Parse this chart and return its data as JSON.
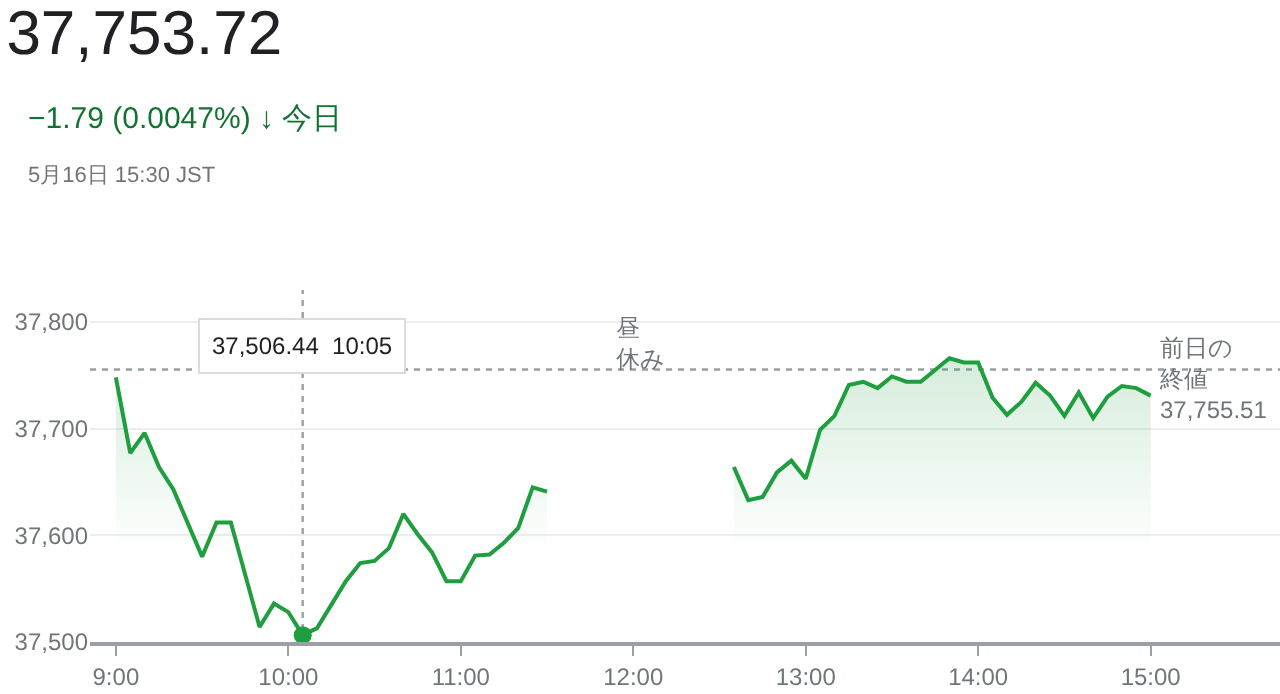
{
  "chart_data": {
    "type": "area",
    "title": "37,753.72",
    "subtitle": "−1.79 (0.0047%) ↓ 今日",
    "annotations": [
      "5月16日 15:30 JST",
      "昼休み",
      "37,506.44  10:05"
    ],
    "xlim": [
      8.85,
      15.75
    ],
    "xticks": [
      {
        "value": 9,
        "label": "9:00"
      },
      {
        "value": 10,
        "label": "10:00"
      },
      {
        "value": 11,
        "label": "11:00"
      },
      {
        "value": 12,
        "label": "12:00"
      },
      {
        "value": 13,
        "label": "13:00"
      },
      {
        "value": 14,
        "label": "14:00"
      },
      {
        "value": 15,
        "label": "15:00"
      }
    ],
    "ylim": [
      37500,
      37830
    ],
    "yticks": [
      {
        "value": 37500,
        "label": "37,500"
      },
      {
        "value": 37600,
        "label": "37,600"
      },
      {
        "value": 37700,
        "label": "37,700"
      },
      {
        "value": 37800,
        "label": "37,800"
      }
    ],
    "grid": "y",
    "marker": "none",
    "line_style": "solid",
    "ref_lines": [
      {
        "axis": "y",
        "value": 37755.51,
        "label": "前日の終値37,755.51",
        "color": "#9aa0a6",
        "line_style": "dotted"
      },
      {
        "axis": "x",
        "value": 10.0833,
        "label": null,
        "color": "#9aa0a6",
        "line_style": "dotted"
      }
    ],
    "series": [
      {
        "color": "#1e9e3e",
        "x": [
          9,
          9.0833,
          9.1667,
          9.25,
          9.3333,
          9.5,
          9.5833,
          9.6667,
          9.8333,
          9.9167,
          10,
          10.0833,
          10.1667,
          10.25,
          10.3333,
          10.4167,
          10.5,
          10.5833,
          10.6667,
          10.75,
          10.8333,
          10.9167,
          11,
          11.0833,
          11.1667,
          11.25,
          11.3333,
          11.4167,
          11.5
        ],
        "values": [
          37748,
          37677,
          37696,
          37664,
          37643,
          37580,
          37612,
          37612,
          37514,
          37536,
          37528,
          37506.44,
          37513,
          37535,
          37557,
          37574,
          37576,
          37588,
          37620,
          37601,
          37584,
          37557,
          37557,
          37581,
          37582,
          37593,
          37607,
          37645,
          37641
        ]
      },
      {
        "color": "#1e9e3e",
        "x": [
          12.5833,
          12.6667,
          12.75,
          12.8333,
          12.9167,
          13,
          13.0833,
          13.1667,
          13.25,
          13.3333,
          13.4167,
          13.5,
          13.5833,
          13.6667,
          13.75,
          13.8333,
          13.9167,
          14,
          14.0833,
          14.1667,
          14.25,
          14.3333,
          14.4167,
          14.5,
          14.5833,
          14.6667,
          14.75,
          14.8333,
          14.9167,
          15
        ],
        "values": [
          37664,
          37633,
          37636,
          37659,
          37670,
          37653,
          37699,
          37712,
          37741,
          37744,
          37738,
          37749,
          37744,
          37744,
          37755,
          37766,
          37762,
          37762,
          37729,
          37713,
          37725,
          37743,
          37731,
          37712,
          37734,
          37710,
          37730,
          37740,
          37738,
          37731
        ]
      },
      {
        "type": "scatter",
        "color": "#1e9e3e",
        "marker": "circle",
        "x": [
          10.0833
        ],
        "values": [
          37506.44
        ]
      }
    ]
  }
}
